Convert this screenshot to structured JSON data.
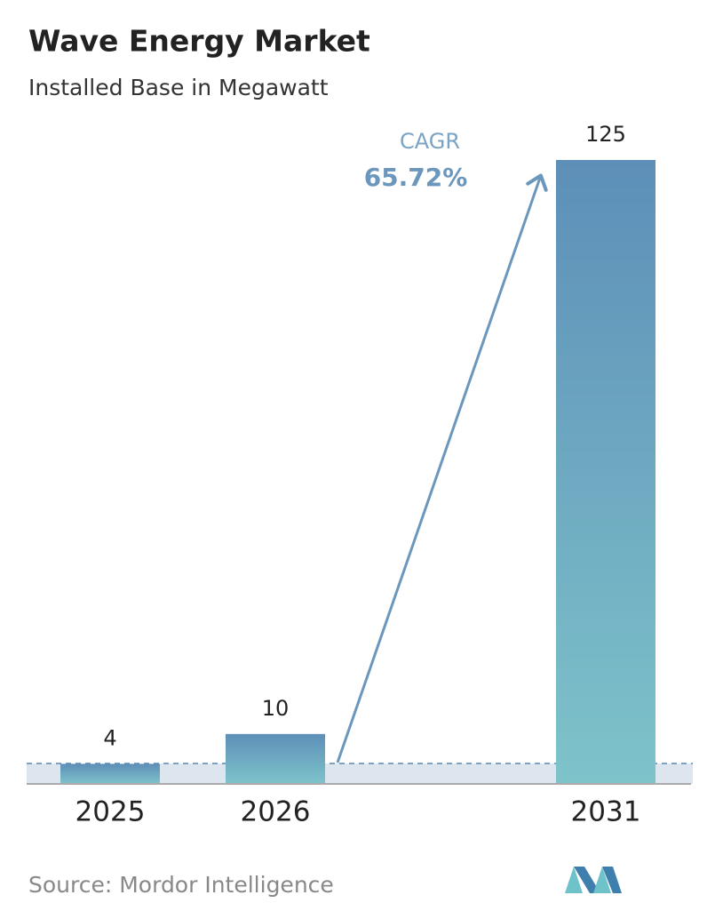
{
  "chart_data": {
    "type": "bar",
    "title": "Wave Energy Market",
    "subtitle": "Installed Base in Megawatt",
    "categories": [
      "2025",
      "2026",
      "2031"
    ],
    "values": [
      4,
      10,
      125
    ],
    "annotation": {
      "label": "CAGR",
      "value": "65.72%"
    },
    "source": "Source: Mordor Intelligence"
  }
}
